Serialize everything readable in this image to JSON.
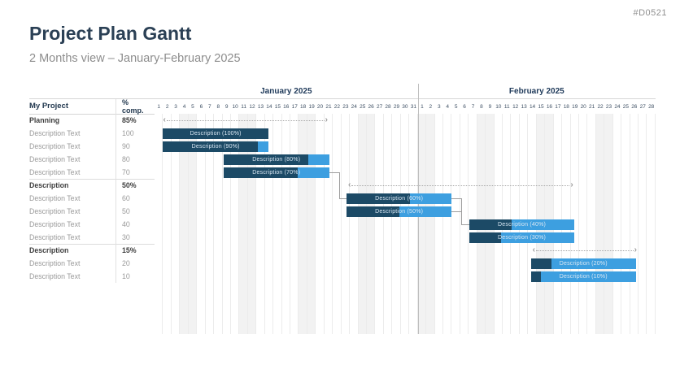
{
  "page": {
    "code": "#D0521",
    "title": "Project Plan Gantt",
    "subtitle": "2 Months view – January-February 2025"
  },
  "table": {
    "name_header": "My Project",
    "pct_header": "% comp.",
    "rows": [
      {
        "label": "Planning",
        "value": "85%",
        "bold": true
      },
      {
        "label": "Description Text",
        "value": "100",
        "bold": false
      },
      {
        "label": "Description Text",
        "value": "90",
        "bold": false
      },
      {
        "label": "Description Text",
        "value": "80",
        "bold": false
      },
      {
        "label": "Description Text",
        "value": "70",
        "bold": false
      },
      {
        "label": "Description",
        "value": "50%",
        "bold": true
      },
      {
        "label": "Description Text",
        "value": "60",
        "bold": false
      },
      {
        "label": "Description Text",
        "value": "50",
        "bold": false
      },
      {
        "label": "Description Text",
        "value": "40",
        "bold": false
      },
      {
        "label": "Description Text",
        "value": "30",
        "bold": false
      },
      {
        "label": "Description",
        "value": "15%",
        "bold": true
      },
      {
        "label": "Description Text",
        "value": "20",
        "bold": false
      },
      {
        "label": "Description Text",
        "value": "10",
        "bold": false
      }
    ]
  },
  "chart_data": {
    "type": "bar",
    "subtype": "gantt",
    "title": "Project Plan Gantt",
    "x_unit": "days, 0 = Jan 1 2025 left edge, fractional allowed",
    "months": [
      {
        "label": "January 2025",
        "days": 31,
        "weekend_days": [
          4,
          5,
          11,
          12,
          18,
          19,
          25,
          26
        ]
      },
      {
        "label": "February 2025",
        "days": 28,
        "weekend_days": [
          1,
          2,
          8,
          9,
          15,
          16,
          22,
          23
        ]
      }
    ],
    "bars": [
      {
        "row": 1,
        "label": "Description (100%)",
        "start": 1.0,
        "end": 13.4,
        "pct": 100
      },
      {
        "row": 2,
        "label": "Description (90%)",
        "start": 1.0,
        "end": 13.4,
        "pct": 90
      },
      {
        "row": 3,
        "label": "Description (80%)",
        "start": 8.1,
        "end": 20.6,
        "pct": 80
      },
      {
        "row": 4,
        "label": "Description (70%)",
        "start": 8.1,
        "end": 20.6,
        "pct": 70
      },
      {
        "row": 6,
        "label": "Description (60%)",
        "start": 22.6,
        "end": 35.0,
        "pct": 60
      },
      {
        "row": 7,
        "label": "Description (50%)",
        "start": 22.6,
        "end": 35.0,
        "pct": 50
      },
      {
        "row": 8,
        "label": "Description (40%)",
        "start": 37.1,
        "end": 49.4,
        "pct": 40
      },
      {
        "row": 9,
        "label": "Description (30%)",
        "start": 37.1,
        "end": 49.4,
        "pct": 30
      },
      {
        "row": 11,
        "label": "Description (20%)",
        "start": 44.3,
        "end": 56.7,
        "pct": 20
      },
      {
        "row": 12,
        "label": "Description (10%)",
        "start": 44.3,
        "end": 56.7,
        "pct": 10
      }
    ],
    "phase_arrows": [
      {
        "row": 0,
        "phase": "Planning",
        "start": 1.0,
        "end": 20.4
      },
      {
        "row": 5,
        "phase": "Description",
        "start": 22.8,
        "end": 49.3
      },
      {
        "row": 10,
        "phase": "Description",
        "start": 44.5,
        "end": 56.8
      }
    ],
    "connectors": [
      {
        "from": "Description (70%)",
        "to": "Description (60%)"
      },
      {
        "from": "Description (60%)",
        "to": "Description (40%)"
      },
      {
        "from": "Description (50%)",
        "to": "Description (40%)"
      }
    ]
  },
  "colors": {
    "bar_complete": "#1c4a66",
    "bar_remaining": "#3d9fe0",
    "bar_label_text": "#d9e7f3",
    "navy_text": "#1f3a5a",
    "weekend_shade": "#f2f2f2"
  }
}
